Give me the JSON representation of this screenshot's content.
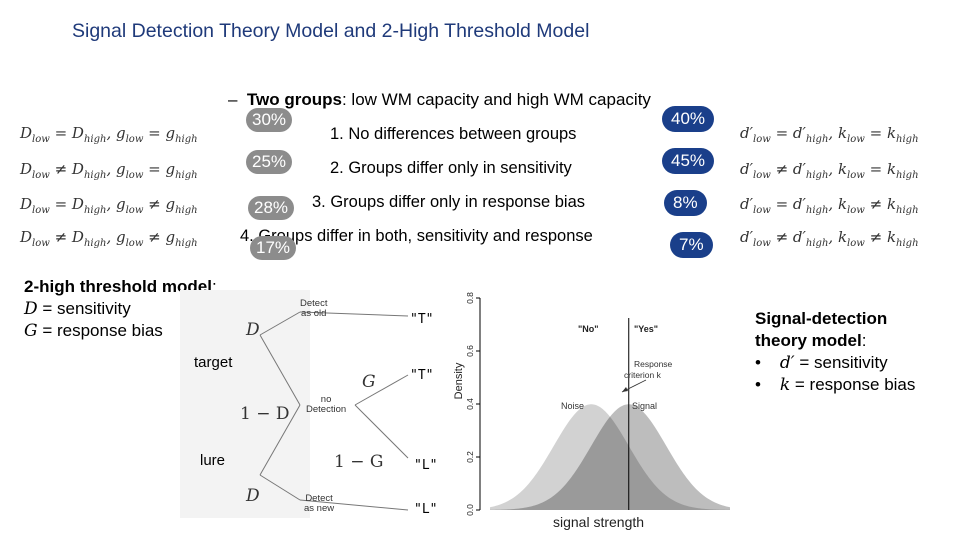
{
  "title": "Signal Detection Theory Model and 2-High Threshold Model",
  "intro": {
    "dash": "–",
    "bold": "Two groups",
    "rest": ": low WM capacity and high WM capacity"
  },
  "rows": [
    {
      "option": "1.  No differences between groups",
      "left_pct": "30%",
      "right_pct": "40%",
      "left_formula": {
        "a": "D",
        "a_sub": "low",
        "op1": " = ",
        "b": "D",
        "b_sub": "high",
        "sep": ", ",
        "c": "g",
        "c_sub": "low",
        "op2": " = ",
        "d": "g",
        "d_sub": "high"
      },
      "right_formula": {
        "a": "d′",
        "a_sub": "low",
        "op1": " = ",
        "b": "d′",
        "b_sub": "high",
        "sep": ", ",
        "c": "k",
        "c_sub": "low",
        "op2": " = ",
        "d": "k",
        "d_sub": "high"
      }
    },
    {
      "option": "2.  Groups differ only in sensitivity",
      "left_pct": "25%",
      "right_pct": "45%",
      "left_formula": {
        "a": "D",
        "a_sub": "low",
        "op1": " ≠ ",
        "b": "D",
        "b_sub": "high",
        "sep": ", ",
        "c": "g",
        "c_sub": "low",
        "op2": " = ",
        "d": "g",
        "d_sub": "high"
      },
      "right_formula": {
        "a": "d′",
        "a_sub": "low",
        "op1": " ≠ ",
        "b": "d′",
        "b_sub": "high",
        "sep": ", ",
        "c": "k",
        "c_sub": "low",
        "op2": " = ",
        "d": "k",
        "d_sub": "high"
      }
    },
    {
      "option": "3.  Groups differ only in response bias",
      "left_pct": "28%",
      "right_pct": "8%",
      "left_formula": {
        "a": "D",
        "a_sub": "low",
        "op1": " = ",
        "b": "D",
        "b_sub": "high",
        "sep": ", ",
        "c": "g",
        "c_sub": "low",
        "op2": " ≠ ",
        "d": "g",
        "d_sub": "high"
      },
      "right_formula": {
        "a": "d′",
        "a_sub": "low",
        "op1": " = ",
        "b": "d′",
        "b_sub": "high",
        "sep": ", ",
        "c": "k",
        "c_sub": "low",
        "op2": " ≠ ",
        "d": "k",
        "d_sub": "high"
      }
    },
    {
      "option": "4.  Groups differ in both, sensitivity and response",
      "left_pct": "17%",
      "right_pct": "7%",
      "left_formula": {
        "a": "D",
        "a_sub": "low",
        "op1": " ≠ ",
        "b": "D",
        "b_sub": "high",
        "sep": ", ",
        "c": "g",
        "c_sub": "low",
        "op2": " ≠ ",
        "d": "g",
        "d_sub": "high"
      },
      "right_formula": {
        "a": "d′",
        "a_sub": "low",
        "op1": " ≠ ",
        "b": "d′",
        "b_sub": "high",
        "sep": ", ",
        "c": "k",
        "c_sub": "low",
        "op2": " ≠ ",
        "d": "k",
        "d_sub": "high"
      }
    }
  ],
  "two_high": {
    "heading": "2-high threshold model",
    "colon": ":",
    "line1_sym": "D",
    "line1_text": " = sensitivity",
    "line2_sym": "G",
    "line2_text": " = response bias"
  },
  "tree": {
    "target": "target",
    "lure": "lure",
    "D1": "D",
    "one_minus_D": "1 − D",
    "G": "G",
    "one_minus_G": "1 − G",
    "D2": "D",
    "detect_old_1": "Detect",
    "detect_old_2": "as old",
    "no_detection_1": "no",
    "no_detection_2": "Detection",
    "detect_new_1": "Detect",
    "detect_new_2": "as new",
    "resp1": "\"T\"",
    "resp2": "\"T\"",
    "resp3": "\"L\"",
    "resp4": "\"L\""
  },
  "chart_data": {
    "type": "area",
    "ylabel": "Density",
    "xlabel": "signal strength",
    "yticks": [
      "0.0",
      "0.2",
      "0.4",
      "0.6",
      "0.8"
    ],
    "ylim": [
      0,
      0.8
    ],
    "series": [
      {
        "name": "Noise",
        "mean": -0.5,
        "sd": 1
      },
      {
        "name": "Signal",
        "mean": 0.5,
        "sd": 1
      }
    ],
    "criterion": 0.5,
    "annotations": [
      "\"No\"",
      "\"Yes\"",
      "Response",
      "criterion k"
    ],
    "colors": {
      "noise": "#d2d2d2",
      "signal": "#bdbdbd",
      "overlap": "#9a9a9a",
      "line": "#000000"
    }
  },
  "sdt": {
    "heading1": "Signal-detection",
    "heading2": "theory model",
    "colon": ":",
    "bullet": "•",
    "b1_sym": "d′",
    "b1_text": " = sensitivity",
    "b2_sym": "k",
    "b2_text": " = response bias"
  },
  "colors": {
    "title": "#1f3a7a",
    "pct_grey": "#8c8c8c",
    "pct_blue": "#1a3f8a"
  }
}
